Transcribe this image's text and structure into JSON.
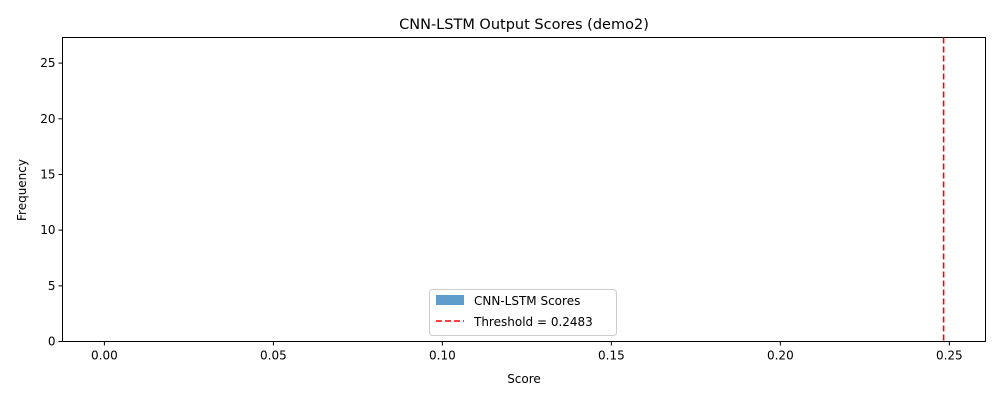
{
  "chart_data": {
    "type": "bar",
    "title": "CNN-LSTM Output Scores (demo2)",
    "xlabel": "Score",
    "ylabel": "Frequency",
    "xlim": [
      -0.0124,
      0.2607
    ],
    "ylim": [
      0,
      27.3
    ],
    "x_ticks": [
      "0.00",
      "0.05",
      "0.10",
      "0.15",
      "0.20",
      "0.25"
    ],
    "y_ticks": [
      "0",
      "5",
      "10",
      "15",
      "20",
      "25"
    ],
    "series": [
      {
        "name": "CNN-LSTM Scores",
        "type": "histogram",
        "color": "#5f9dcc",
        "bins": [],
        "counts": []
      }
    ],
    "threshold": {
      "label": "Threshold = 0.2483",
      "value": 0.2483,
      "color": "#ff0000",
      "style": "dashed"
    },
    "grid": false,
    "legend_placement": "lower-center"
  }
}
